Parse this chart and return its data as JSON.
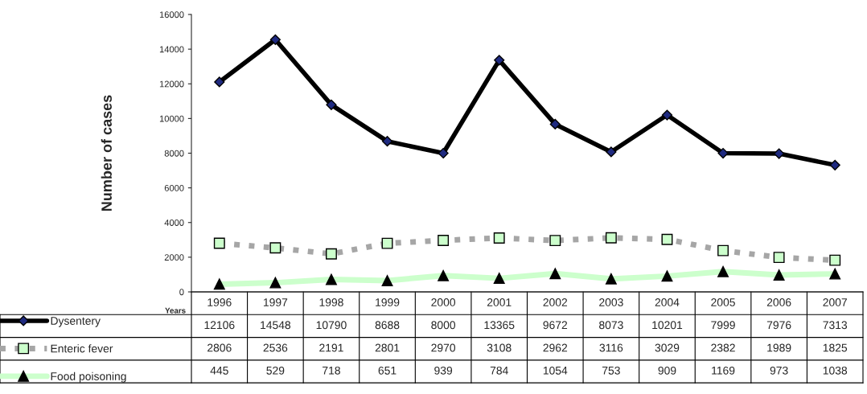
{
  "chart_data": {
    "type": "line",
    "ylabel": "Number of cases",
    "xlabel": "Years",
    "categories": [
      "1996",
      "1997",
      "1998",
      "1999",
      "2000",
      "2001",
      "2002",
      "2003",
      "2004",
      "2005",
      "2006",
      "2007"
    ],
    "ylim": [
      0,
      16000
    ],
    "yticks": [
      0,
      2000,
      4000,
      6000,
      8000,
      10000,
      12000,
      14000,
      16000
    ],
    "data_labels": true,
    "legend": "left",
    "series": [
      {
        "name": "Dysentery",
        "color": "#000000",
        "marker": "diamond",
        "values": [
          12106,
          14548,
          10790,
          8688,
          8000,
          13365,
          9672,
          8073,
          10201,
          7999,
          7976,
          7313
        ]
      },
      {
        "name": "Enteric fever",
        "color": "#a6a6a6",
        "marker": "square",
        "line_style": "dotted",
        "values": [
          2806,
          2536,
          2191,
          2801,
          2970,
          3108,
          2962,
          3116,
          3029,
          2382,
          1989,
          1825
        ]
      },
      {
        "name": "Food poisoning",
        "color": "#ccffcc",
        "marker": "triangle",
        "values": [
          445,
          529,
          718,
          651,
          939,
          784,
          1054,
          753,
          909,
          1169,
          973,
          1038
        ]
      }
    ]
  }
}
